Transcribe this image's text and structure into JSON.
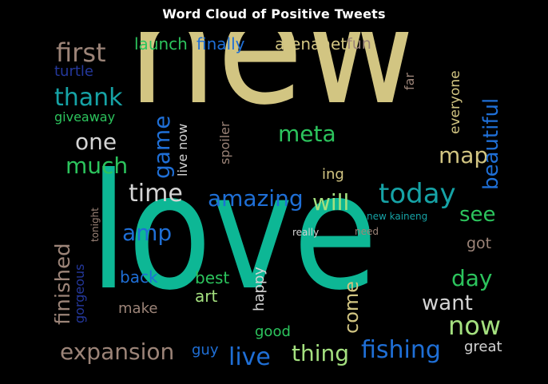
{
  "title": "Word Cloud of Positive Tweets",
  "palette": {
    "tan": "#d2c582",
    "teal": "#0db795",
    "blue": "#1f6fd6",
    "navy": "#24389c",
    "green": "#2cc45d",
    "lightgreen": "#a4e07f",
    "brown": "#9c8478",
    "cyan": "#16a3a6",
    "gray": "#d4d4d4"
  },
  "words": [
    {
      "text": "new",
      "color": "#d2c582",
      "size": 200
    },
    {
      "text": "love",
      "color": "#0db795",
      "size": 200
    },
    {
      "text": "first",
      "color": "#9c8478",
      "size": 32
    },
    {
      "text": "launch",
      "color": "#2cc45d",
      "size": 20
    },
    {
      "text": "finally",
      "color": "#1f6fd6",
      "size": 20
    },
    {
      "text": "arenanet",
      "color": "#d2c582",
      "size": 20
    },
    {
      "text": "fun",
      "color": "#9c8478",
      "size": 19
    },
    {
      "text": "turtle",
      "color": "#24389c",
      "size": 18
    },
    {
      "text": "thank",
      "color": "#16a3a6",
      "size": 30
    },
    {
      "text": "giveaway",
      "color": "#2cc45d",
      "size": 16
    },
    {
      "text": "one",
      "color": "#d4d4d4",
      "size": 28
    },
    {
      "text": "much",
      "color": "#2cc45d",
      "size": 28
    },
    {
      "text": "time",
      "color": "#d4d4d4",
      "size": 30
    },
    {
      "text": "amazing",
      "color": "#1f6fd6",
      "size": 28
    },
    {
      "text": "will",
      "color": "#a4e07f",
      "size": 28
    },
    {
      "text": "today",
      "color": "#16a3a6",
      "size": 34
    },
    {
      "text": "meta",
      "color": "#2cc45d",
      "size": 28
    },
    {
      "text": "map",
      "color": "#d2c582",
      "size": 28
    },
    {
      "text": "ing",
      "color": "#d2c582",
      "size": 18
    },
    {
      "text": "game",
      "color": "#1f6fd6",
      "size": 28
    },
    {
      "text": "live now",
      "color": "#d4d4d4",
      "size": 16
    },
    {
      "text": "spoiler",
      "color": "#9c8478",
      "size": 16
    },
    {
      "text": "far",
      "color": "#9c8478",
      "size": 16
    },
    {
      "text": "everyone",
      "color": "#d2c582",
      "size": 17
    },
    {
      "text": "beautiful",
      "color": "#1f6fd6",
      "size": 26
    },
    {
      "text": "see",
      "color": "#2cc45d",
      "size": 26
    },
    {
      "text": "got",
      "color": "#9c8478",
      "size": 19
    },
    {
      "text": "new kaineng",
      "color": "#16a3a6",
      "size": 12
    },
    {
      "text": "really",
      "color": "#d4d4d4",
      "size": 12
    },
    {
      "text": "need",
      "color": "#9c8478",
      "size": 12
    },
    {
      "text": "amp",
      "color": "#1f6fd6",
      "size": 28
    },
    {
      "text": "finished",
      "color": "#9c8478",
      "size": 26
    },
    {
      "text": "tonight",
      "color": "#9c8478",
      "size": 12
    },
    {
      "text": "gorgeous",
      "color": "#24389c",
      "size": 16
    },
    {
      "text": "back",
      "color": "#1f6fd6",
      "size": 20
    },
    {
      "text": "make",
      "color": "#9c8478",
      "size": 18
    },
    {
      "text": "best",
      "color": "#2cc45d",
      "size": 20
    },
    {
      "text": "art",
      "color": "#a4e07f",
      "size": 20
    },
    {
      "text": "happy",
      "color": "#d4d4d4",
      "size": 18
    },
    {
      "text": "come",
      "color": "#d2c582",
      "size": 24
    },
    {
      "text": "day",
      "color": "#2cc45d",
      "size": 28
    },
    {
      "text": "want",
      "color": "#d4d4d4",
      "size": 26
    },
    {
      "text": "now",
      "color": "#a4e07f",
      "size": 32
    },
    {
      "text": "good",
      "color": "#2cc45d",
      "size": 18
    },
    {
      "text": "expansion",
      "color": "#9c8478",
      "size": 28
    },
    {
      "text": "guy",
      "color": "#1f6fd6",
      "size": 18
    },
    {
      "text": "live",
      "color": "#1f6fd6",
      "size": 30
    },
    {
      "text": "thing",
      "color": "#a4e07f",
      "size": 28
    },
    {
      "text": "fishing",
      "color": "#1f6fd6",
      "size": 30
    },
    {
      "text": "great",
      "color": "#d4d4d4",
      "size": 18
    }
  ]
}
